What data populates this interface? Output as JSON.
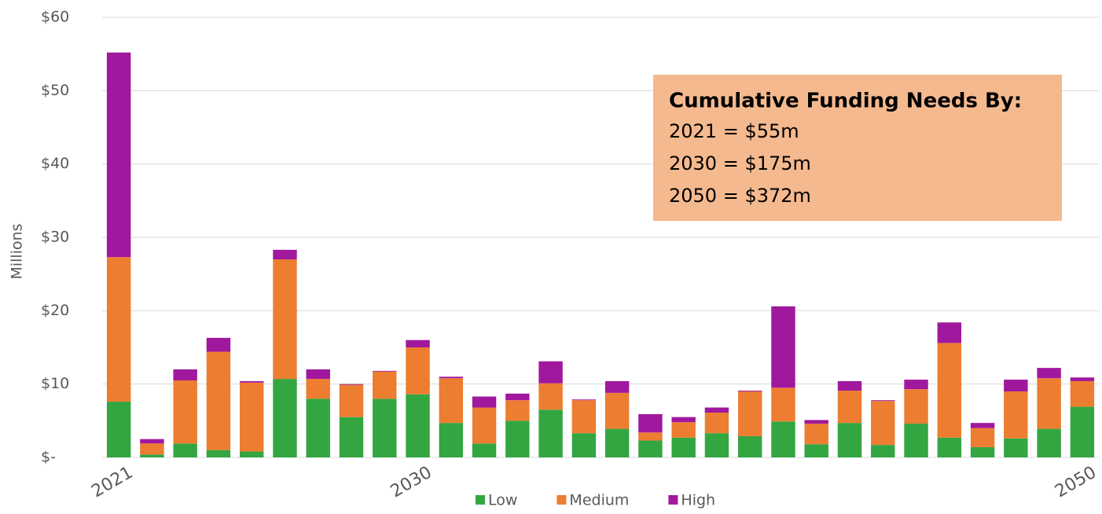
{
  "chart_data": {
    "type": "stacked_bar",
    "y_label": "Millions",
    "categories": [
      "2021",
      null,
      null,
      null,
      null,
      null,
      null,
      null,
      null,
      "2030",
      null,
      null,
      null,
      null,
      null,
      null,
      null,
      null,
      null,
      null,
      null,
      null,
      null,
      null,
      null,
      null,
      null,
      null,
      null,
      "2050"
    ],
    "series": [
      {
        "name": "Low",
        "color": "#33a642",
        "values": [
          7.6,
          0.4,
          1.9,
          1.0,
          0.8,
          10.7,
          8.0,
          5.5,
          8.0,
          8.6,
          4.7,
          1.9,
          5.0,
          6.5,
          3.3,
          3.9,
          2.3,
          2.7,
          3.3,
          2.9,
          4.9,
          1.8,
          4.7,
          1.7,
          4.6,
          2.7,
          1.4,
          2.6,
          3.9,
          6.9
        ]
      },
      {
        "name": "Medium",
        "color": "#ed7d31",
        "values": [
          19.7,
          1.5,
          8.6,
          13.4,
          9.4,
          16.3,
          2.7,
          4.4,
          3.7,
          6.4,
          6.1,
          4.9,
          2.8,
          3.6,
          4.5,
          4.9,
          1.1,
          2.1,
          2.8,
          6.1,
          4.6,
          2.8,
          4.4,
          6.0,
          4.7,
          12.9,
          2.6,
          6.4,
          6.9,
          3.5
        ]
      },
      {
        "name": "High",
        "color": "#a0189e",
        "values": [
          27.9,
          0.6,
          1.5,
          1.9,
          0.2,
          1.3,
          1.3,
          0.1,
          0.1,
          1.0,
          0.2,
          1.5,
          0.9,
          3.0,
          0.1,
          1.6,
          2.5,
          0.7,
          0.7,
          0.1,
          11.1,
          0.5,
          1.3,
          0.1,
          1.3,
          2.8,
          0.7,
          1.6,
          1.4,
          0.5
        ]
      }
    ],
    "ylim": [
      0,
      60
    ],
    "yticks": [
      {
        "value": 0,
        "label": "$-"
      },
      {
        "value": 10,
        "label": "$10"
      },
      {
        "value": 20,
        "label": "$20"
      },
      {
        "value": 30,
        "label": "$30"
      },
      {
        "value": 40,
        "label": "$40"
      },
      {
        "value": 50,
        "label": "$50"
      },
      {
        "value": 60,
        "label": "$60"
      }
    ],
    "grid": true,
    "legend": "bottom",
    "annotation": {
      "title": "Cumulative Funding Needs By:",
      "lines": [
        "2021 = $55m",
        "2030 = $175m",
        "2050 = $372m"
      ]
    }
  }
}
